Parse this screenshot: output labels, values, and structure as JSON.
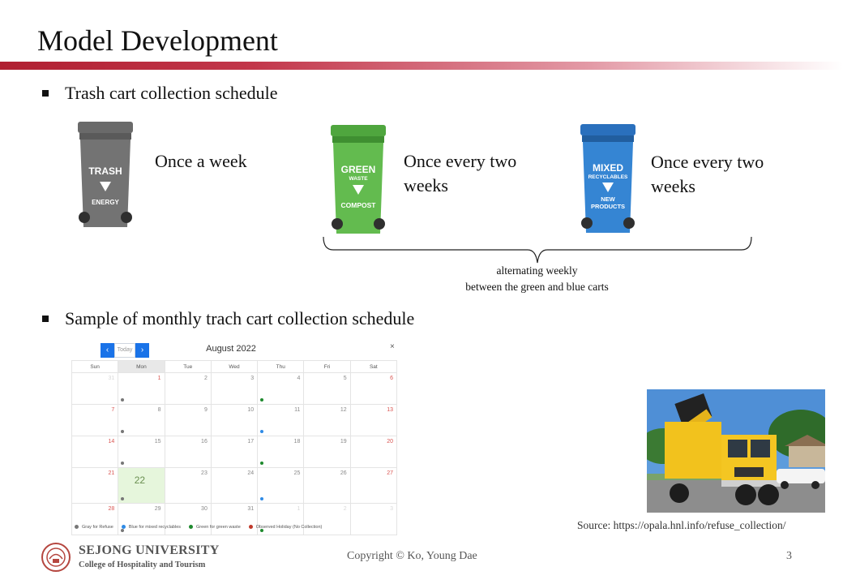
{
  "slide": {
    "title": "Model Development",
    "bullet1": "Trash cart collection schedule",
    "bullet2": "Sample of monthly trach cart collection schedule",
    "source": "Source: https://opala.hnl.info/refuse_collection/",
    "copyright": "Copyright  © Ko, Young  Dae",
    "page_number": "3",
    "accent_color": "#b01f31"
  },
  "carts": [
    {
      "icon": "gray-trash-cart-icon",
      "color": "#6d6d6d",
      "labels": [
        "TRASH",
        "ENERGY"
      ],
      "schedule": "Once a week"
    },
    {
      "icon": "green-waste-cart-icon",
      "color": "#5cb54a",
      "labels": [
        "GREEN",
        "WASTE",
        "COMPOST"
      ],
      "schedule": "Once every two weeks"
    },
    {
      "icon": "blue-mixed-recyclables-cart-icon",
      "color": "#2f7fcf",
      "labels": [
        "MIXED",
        "RECYCLABLES",
        "NEW",
        "PRODUCTS"
      ],
      "schedule": "Once every two weeks"
    }
  ],
  "brace_note": {
    "line1": "alternating  weekly",
    "line2": "between the  green  and blue  carts"
  },
  "calendar": {
    "today_label": "Today",
    "prev_icon": "‹",
    "next_icon": "›",
    "close_icon": "×",
    "month": "August 2022",
    "weekdays": [
      "Sun",
      "Mon",
      "Tue",
      "Wed",
      "Thu",
      "Fri",
      "Sat"
    ],
    "weeks": [
      [
        "31",
        "1",
        "2",
        "3",
        "4",
        "5",
        "6"
      ],
      [
        "7",
        "8",
        "9",
        "10",
        "11",
        "12",
        "13"
      ],
      [
        "14",
        "15",
        "16",
        "17",
        "18",
        "19",
        "20"
      ],
      [
        "21",
        "22",
        "23",
        "24",
        "25",
        "26",
        "27"
      ],
      [
        "28",
        "29",
        "30",
        "31",
        "1",
        "2",
        "3"
      ]
    ],
    "today": "22",
    "legend": [
      {
        "label": "Gray for Refuse",
        "color": "#777777"
      },
      {
        "label": "Blue for mixed recyclables",
        "color": "#2f8be6"
      },
      {
        "label": "Green for green waste",
        "color": "#1e8a2e"
      },
      {
        "label": "Observed Holiday (No Collection)",
        "color": "#c0392b"
      }
    ]
  },
  "footer": {
    "university": "SEJONG UNIVERSITY",
    "college": "College of Hospitality and Tourism"
  }
}
